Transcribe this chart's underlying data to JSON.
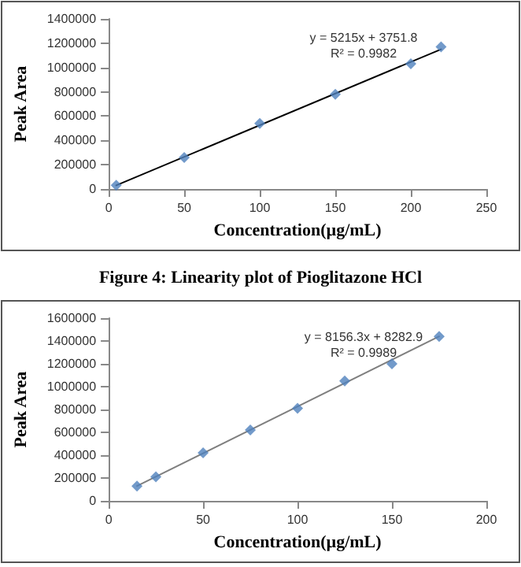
{
  "chart_data": [
    {
      "type": "scatter",
      "title": "Figure 4: Linearity plot of Pioglitazone HCl",
      "xlabel": "Concentration(µg/mL)",
      "ylabel": "Peak Area",
      "xlim": [
        0,
        250
      ],
      "xticks": [
        0,
        50,
        100,
        150,
        200,
        250
      ],
      "ylim": [
        0,
        1400000
      ],
      "yticks": [
        0,
        200000,
        400000,
        600000,
        800000,
        1000000,
        1200000,
        1400000
      ],
      "grid": false,
      "marker": "diamond",
      "series": [
        {
          "color": "#4f81bd",
          "x": [
            5,
            50,
            100,
            150,
            200,
            220
          ],
          "values": [
            30000,
            260000,
            540000,
            780000,
            1030000,
            1170000
          ]
        },
        {
          "type": "line",
          "color": "#000000",
          "marker": "none",
          "line_style": "solid",
          "x": [
            5,
            220
          ],
          "values": [
            30000,
            1150000
          ]
        }
      ],
      "annotations": [
        "y = 5215x + 3751.8",
        "R² = 0.9982"
      ]
    },
    {
      "type": "scatter",
      "xlabel": "Concentration(µg/mL)",
      "ylabel": "Peak Area",
      "xlim": [
        0,
        200
      ],
      "xticks": [
        0,
        50,
        100,
        150,
        200
      ],
      "ylim": [
        0,
        1600000
      ],
      "yticks": [
        0,
        200000,
        400000,
        600000,
        800000,
        1000000,
        1200000,
        1400000,
        1600000
      ],
      "grid": false,
      "marker": "diamond",
      "series": [
        {
          "color": "#4f81bd",
          "x": [
            15,
            25,
            50,
            75,
            100,
            125,
            150,
            175
          ],
          "values": [
            130000,
            210000,
            420000,
            620000,
            810000,
            1050000,
            1200000,
            1440000
          ]
        },
        {
          "type": "line",
          "color": "#7f7f7f",
          "marker": "none",
          "line_style": "solid",
          "x": [
            15,
            175
          ],
          "values": [
            130000,
            1440000
          ]
        }
      ],
      "annotations": [
        "y = 8156.3x + 8282.9",
        "R² = 0.9989"
      ]
    }
  ]
}
